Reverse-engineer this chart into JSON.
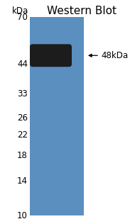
{
  "title": "Western Blot",
  "title_fontsize": 11,
  "kda_labels": [
    "70",
    "44",
    "33",
    "26",
    "22",
    "18",
    "14",
    "10"
  ],
  "kda_unit_label": "kDa",
  "band_color": "#1c1c1c",
  "gel_bg_color": "#5b8fc0",
  "background_color": "#ffffff",
  "label_color": "#000000",
  "label_fontsize": 8.5,
  "arrow_label": "48kDa",
  "arrow_fontsize": 8.5
}
